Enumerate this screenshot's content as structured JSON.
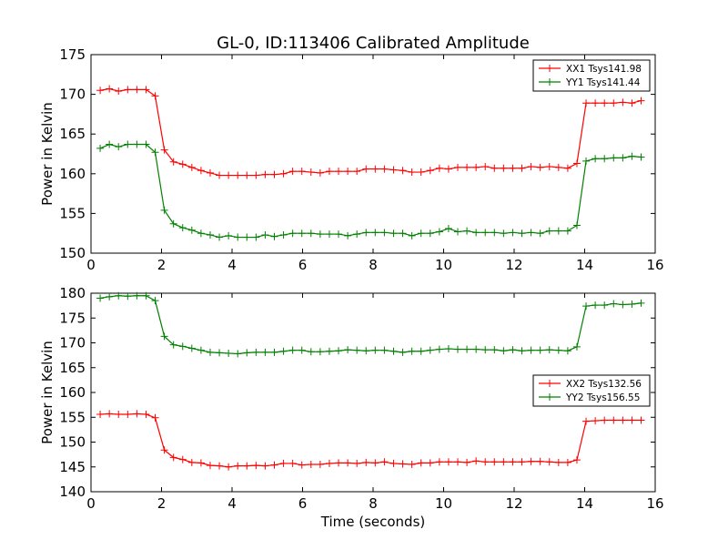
{
  "title": "GL-0, ID:113406 Calibrated Amplitude",
  "chart_data": [
    {
      "type": "line",
      "ylabel": "Power in Kelvin",
      "xlabel": "",
      "xlim": [
        0,
        16
      ],
      "ylim": [
        150,
        175
      ],
      "xticks": [
        "0",
        "2",
        "4",
        "6",
        "8",
        "10",
        "12",
        "14",
        "16"
      ],
      "yticks": [
        "150",
        "155",
        "160",
        "165",
        "170",
        "175"
      ],
      "legend_position": "top-right",
      "x": [
        0.26,
        0.52,
        0.78,
        1.04,
        1.3,
        1.56,
        1.82,
        2.08,
        2.34,
        2.6,
        2.86,
        3.12,
        3.38,
        3.64,
        3.9,
        4.16,
        4.42,
        4.68,
        4.94,
        5.2,
        5.46,
        5.72,
        5.98,
        6.24,
        6.5,
        6.76,
        7.02,
        7.28,
        7.54,
        7.8,
        8.06,
        8.32,
        8.58,
        8.84,
        9.1,
        9.36,
        9.62,
        9.88,
        10.14,
        10.4,
        10.66,
        10.92,
        11.18,
        11.44,
        11.7,
        11.96,
        12.22,
        12.48,
        12.74,
        13.0,
        13.26,
        13.52,
        13.78,
        14.04,
        14.3,
        14.56,
        14.82,
        15.08,
        15.34,
        15.6
      ],
      "series": [
        {
          "name": "XX1 Tsys141.98",
          "color": "#ff0000",
          "values": [
            170.5,
            170.7,
            170.4,
            170.6,
            170.6,
            170.6,
            169.8,
            163.0,
            161.5,
            161.2,
            160.8,
            160.4,
            160.1,
            159.8,
            159.8,
            159.8,
            159.8,
            159.8,
            159.9,
            159.9,
            160.0,
            160.3,
            160.3,
            160.2,
            160.1,
            160.3,
            160.3,
            160.3,
            160.3,
            160.6,
            160.6,
            160.6,
            160.5,
            160.4,
            160.2,
            160.2,
            160.4,
            160.7,
            160.6,
            160.8,
            160.8,
            160.8,
            160.9,
            160.7,
            160.7,
            160.7,
            160.7,
            160.9,
            160.8,
            160.9,
            160.8,
            160.7,
            161.3,
            168.9,
            168.9,
            168.9,
            168.9,
            169.0,
            168.9,
            169.2
          ]
        },
        {
          "name": "YY1 Tsys141.44",
          "color": "#008000",
          "values": [
            163.2,
            163.7,
            163.4,
            163.7,
            163.7,
            163.7,
            162.7,
            155.4,
            153.7,
            153.2,
            152.9,
            152.5,
            152.3,
            152.0,
            152.2,
            152.0,
            152.0,
            152.0,
            152.3,
            152.1,
            152.3,
            152.5,
            152.5,
            152.5,
            152.4,
            152.4,
            152.4,
            152.2,
            152.4,
            152.6,
            152.6,
            152.6,
            152.5,
            152.5,
            152.2,
            152.5,
            152.5,
            152.7,
            153.1,
            152.7,
            152.8,
            152.6,
            152.6,
            152.6,
            152.5,
            152.6,
            152.5,
            152.6,
            152.5,
            152.8,
            152.8,
            152.8,
            153.5,
            161.6,
            161.9,
            161.9,
            162.0,
            162.0,
            162.2,
            162.1
          ]
        }
      ]
    },
    {
      "type": "line",
      "ylabel": "Power in Kelvin",
      "xlabel": "Time (seconds)",
      "xlim": [
        0,
        16
      ],
      "ylim": [
        140,
        180
      ],
      "xticks": [
        "0",
        "2",
        "4",
        "6",
        "8",
        "10",
        "12",
        "14",
        "16"
      ],
      "yticks": [
        "140",
        "145",
        "150",
        "155",
        "160",
        "165",
        "170",
        "175",
        "180"
      ],
      "legend_position": "center-right",
      "x": [
        0.26,
        0.52,
        0.78,
        1.04,
        1.3,
        1.56,
        1.82,
        2.08,
        2.34,
        2.6,
        2.86,
        3.12,
        3.38,
        3.64,
        3.9,
        4.16,
        4.42,
        4.68,
        4.94,
        5.2,
        5.46,
        5.72,
        5.98,
        6.24,
        6.5,
        6.76,
        7.02,
        7.28,
        7.54,
        7.8,
        8.06,
        8.32,
        8.58,
        8.84,
        9.1,
        9.36,
        9.62,
        9.88,
        10.14,
        10.4,
        10.66,
        10.92,
        11.18,
        11.44,
        11.7,
        11.96,
        12.22,
        12.48,
        12.74,
        13.0,
        13.26,
        13.52,
        13.78,
        14.04,
        14.3,
        14.56,
        14.82,
        15.08,
        15.34,
        15.6
      ],
      "series": [
        {
          "name": "XX2 Tsys132.56",
          "color": "#ff0000",
          "values": [
            155.6,
            155.7,
            155.6,
            155.6,
            155.7,
            155.6,
            154.9,
            148.4,
            146.9,
            146.5,
            145.9,
            145.8,
            145.3,
            145.2,
            145.0,
            145.2,
            145.2,
            145.3,
            145.2,
            145.4,
            145.7,
            145.7,
            145.4,
            145.5,
            145.5,
            145.7,
            145.8,
            145.8,
            145.7,
            145.9,
            145.8,
            146.0,
            145.7,
            145.6,
            145.5,
            145.8,
            145.8,
            146.0,
            146.0,
            146.0,
            145.9,
            146.2,
            146.0,
            146.0,
            146.0,
            146.0,
            146.0,
            146.1,
            146.1,
            146.0,
            145.9,
            145.9,
            146.4,
            154.2,
            154.3,
            154.4,
            154.4,
            154.4,
            154.4,
            154.4
          ]
        },
        {
          "name": "YY2 Tsys156.55",
          "color": "#008000",
          "values": [
            179.0,
            179.3,
            179.5,
            179.4,
            179.5,
            179.5,
            178.5,
            171.3,
            169.6,
            169.3,
            168.9,
            168.5,
            168.1,
            168.0,
            167.9,
            167.8,
            168.0,
            168.1,
            168.1,
            168.1,
            168.3,
            168.5,
            168.5,
            168.2,
            168.2,
            168.3,
            168.4,
            168.6,
            168.5,
            168.4,
            168.5,
            168.5,
            168.3,
            168.1,
            168.3,
            168.3,
            168.5,
            168.7,
            168.8,
            168.7,
            168.7,
            168.7,
            168.6,
            168.6,
            168.4,
            168.6,
            168.4,
            168.5,
            168.5,
            168.6,
            168.5,
            168.4,
            169.2,
            177.4,
            177.6,
            177.6,
            177.9,
            177.7,
            177.8,
            178.0
          ]
        }
      ]
    }
  ]
}
